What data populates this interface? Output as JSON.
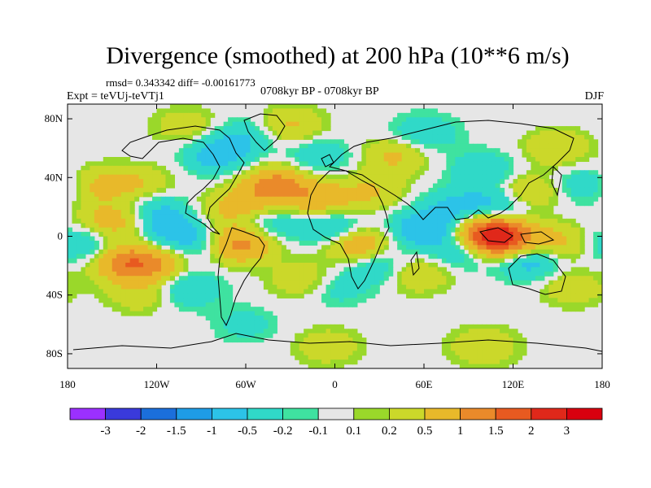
{
  "chart_data": {
    "type": "heatmap",
    "title": "Divergence (smoothed) at 200 hPa (10**6 m/s)",
    "stats_label": "rmsd= 0.343342 diff= -0.00161773",
    "experiment_label": "Expt = teVUj-teVTj1",
    "period_label": "0708kyr BP - 0708kyr BP",
    "season_label": "DJF",
    "x_ticks": [
      "180",
      "120W",
      "60W",
      "0",
      "60E",
      "120E",
      "180"
    ],
    "y_ticks": [
      "80N",
      "40N",
      "0",
      "40S",
      "80S"
    ],
    "xlim": [
      -180,
      180
    ],
    "ylim": [
      -90,
      90
    ],
    "colorbar": {
      "labels": [
        "-3",
        "-2",
        "-1.5",
        "-1",
        "-0.5",
        "-0.2",
        "-0.1",
        "0.1",
        "0.2",
        "0.5",
        "1",
        "1.5",
        "2",
        "3"
      ],
      "colors": [
        "#9b30ff",
        "#3a3adb",
        "#1b6fdb",
        "#1e9ce6",
        "#2cc3e8",
        "#30d9c8",
        "#3fe2a0",
        "#e6e6e6",
        "#9ad82a",
        "#cbd82a",
        "#e8b92a",
        "#ea8a2a",
        "#e85a20",
        "#e0281a",
        "#d9000f"
      ]
    },
    "blobs": [
      {
        "lon": -150,
        "lat": 10,
        "v": 0.8
      },
      {
        "lon": -140,
        "lat": -18,
        "v": 1.2
      },
      {
        "lon": -120,
        "lat": -20,
        "v": 0.7
      },
      {
        "lon": -160,
        "lat": 35,
        "v": 0.6
      },
      {
        "lon": -130,
        "lat": 35,
        "v": 0.5
      },
      {
        "lon": -170,
        "lat": -5,
        "v": -0.6
      },
      {
        "lon": -110,
        "lat": 5,
        "v": -0.7
      },
      {
        "lon": -120,
        "lat": 20,
        "v": -0.5
      },
      {
        "lon": -90,
        "lat": -5,
        "v": -0.5
      },
      {
        "lon": -100,
        "lat": -35,
        "v": -0.6
      },
      {
        "lon": -130,
        "lat": -40,
        "v": 0.4
      },
      {
        "lon": -65,
        "lat": -5,
        "v": 1.3
      },
      {
        "lon": -75,
        "lat": 18,
        "v": 0.4
      },
      {
        "lon": -55,
        "lat": 20,
        "v": 0.5
      },
      {
        "lon": -45,
        "lat": 10,
        "v": -0.6
      },
      {
        "lon": -40,
        "lat": 35,
        "v": 1.2
      },
      {
        "lon": -10,
        "lat": 25,
        "v": 0.8
      },
      {
        "lon": -80,
        "lat": 55,
        "v": -0.7
      },
      {
        "lon": -60,
        "lat": 68,
        "v": -0.5
      },
      {
        "lon": -100,
        "lat": 75,
        "v": 0.4
      },
      {
        "lon": -30,
        "lat": 75,
        "v": 0.6
      },
      {
        "lon": -10,
        "lat": 55,
        "v": -0.5
      },
      {
        "lon": 0,
        "lat": 5,
        "v": -0.8
      },
      {
        "lon": 15,
        "lat": -5,
        "v": 1.1
      },
      {
        "lon": 30,
        "lat": -20,
        "v": -0.6
      },
      {
        "lon": 25,
        "lat": 30,
        "v": 0.5
      },
      {
        "lon": 40,
        "lat": 55,
        "v": 0.6
      },
      {
        "lon": 60,
        "lat": 70,
        "v": -0.5
      },
      {
        "lon": 60,
        "lat": 5,
        "v": -0.9
      },
      {
        "lon": 55,
        "lat": -25,
        "v": 0.6
      },
      {
        "lon": 80,
        "lat": 20,
        "v": -0.5
      },
      {
        "lon": 85,
        "lat": -10,
        "v": -0.6
      },
      {
        "lon": 105,
        "lat": 2,
        "v": 2.0
      },
      {
        "lon": 115,
        "lat": -5,
        "v": 1.2
      },
      {
        "lon": 130,
        "lat": -15,
        "v": -1.0
      },
      {
        "lon": 150,
        "lat": -5,
        "v": 0.7
      },
      {
        "lon": 110,
        "lat": 20,
        "v": -0.7
      },
      {
        "lon": 130,
        "lat": 30,
        "v": 0.6
      },
      {
        "lon": 100,
        "lat": 45,
        "v": -0.5
      },
      {
        "lon": 150,
        "lat": 60,
        "v": 0.5
      },
      {
        "lon": 170,
        "lat": 35,
        "v": -0.5
      },
      {
        "lon": 160,
        "lat": -35,
        "v": 0.4
      },
      {
        "lon": -20,
        "lat": -30,
        "v": 0.5
      },
      {
        "lon": 0,
        "lat": -35,
        "v": -0.4
      },
      {
        "lon": -5,
        "lat": -75,
        "v": 0.4
      },
      {
        "lon": 100,
        "lat": -75,
        "v": 0.5
      },
      {
        "lon": -60,
        "lat": -60,
        "v": -0.3
      }
    ]
  }
}
